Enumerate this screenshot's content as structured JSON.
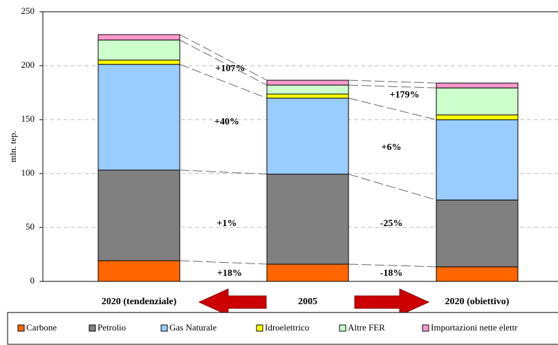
{
  "chart_data": {
    "type": "stacked-bar",
    "ylabel": "mln. tep.",
    "categories": [
      "2020 (tendenziale)",
      "2005",
      "2020 (obiettivo)"
    ],
    "series": [
      {
        "name": "Carbone",
        "color": "#ff6600",
        "values": [
          19.2,
          16,
          13.5
        ]
      },
      {
        "name": "Petrolio",
        "color": "#808080",
        "values": [
          84,
          83.4,
          62
        ]
      },
      {
        "name": "Gas Naturale",
        "color": "#99ccff",
        "values": [
          98,
          70.5,
          74.4
        ]
      },
      {
        "name": "Idroelettrico",
        "color": "#ffff00",
        "values": [
          4,
          3.8,
          4.5
        ]
      },
      {
        "name": "Altre FER",
        "color": "#ccffcc",
        "values": [
          18.6,
          8.3,
          25
        ]
      },
      {
        "name": "Importazioni nette elettr",
        "color": "#ff99cc",
        "values": [
          5,
          4.5,
          4.5
        ]
      }
    ],
    "annotations": [
      "+107%",
      "+40%",
      "+1%",
      "+18%",
      "+179%",
      "+6%",
      "-25%",
      "-18%"
    ],
    "ylim": [
      0,
      250
    ],
    "yticks": [
      0,
      50,
      100,
      150,
      200,
      250
    ],
    "grid": true
  }
}
